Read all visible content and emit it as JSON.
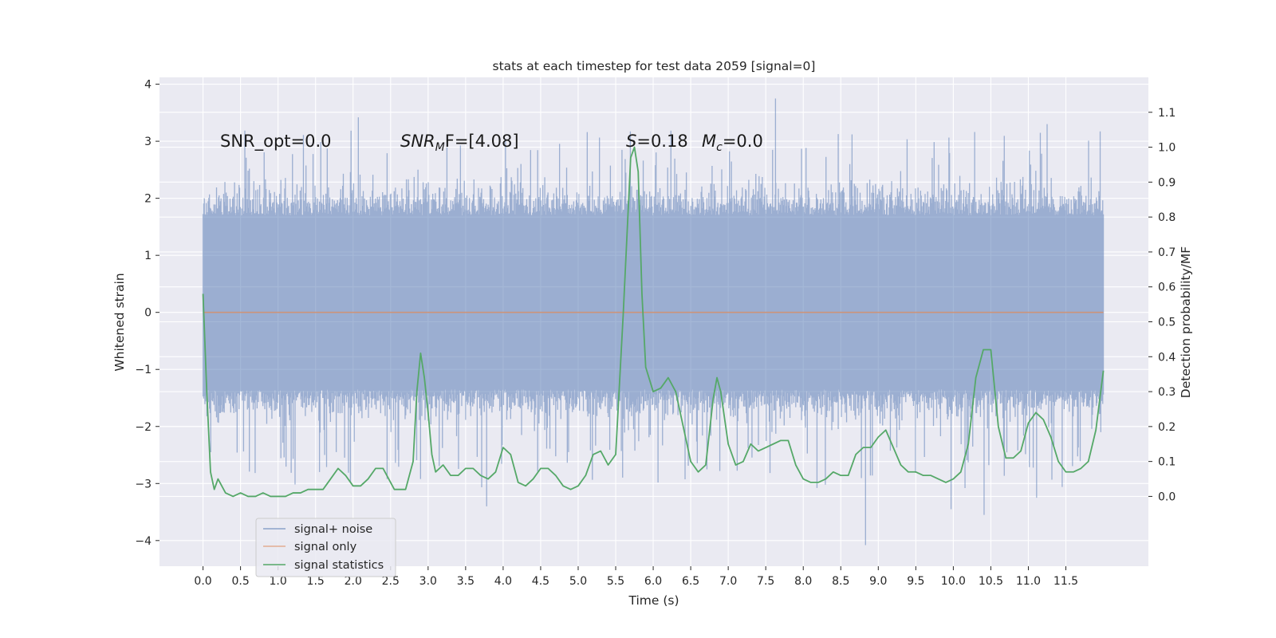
{
  "chart_data": {
    "type": "line",
    "title": "stats at each timestep for test data 2059 [signal=0]",
    "xlabel": "Time (s)",
    "ylabel": "Whitened strain",
    "ylabel_right": "Detection probability/MF",
    "xlim": [
      -0.58,
      12.6
    ],
    "ylim": [
      -4.45,
      4.12
    ],
    "ylim_right": [
      -0.2,
      1.2
    ],
    "x_ticks": [
      0.0,
      0.5,
      1.0,
      1.5,
      2.0,
      2.5,
      3.0,
      3.5,
      4.0,
      4.5,
      5.0,
      5.5,
      6.0,
      6.5,
      7.0,
      7.5,
      8.0,
      8.5,
      9.0,
      9.5,
      10.0,
      10.5,
      11.0,
      11.5
    ],
    "x_tick_labels": [
      "0.0",
      "0.5",
      "1.0",
      "1.5",
      "2.0",
      "2.5",
      "3.0",
      "3.5",
      "4.0",
      "4.5",
      "5.0",
      "5.5",
      "6.0",
      "6.5",
      "7.0",
      "7.5",
      "8.0",
      "8.5",
      "9.0",
      "9.5",
      "10.0",
      "10.5",
      "11.0",
      "11.5"
    ],
    "y_ticks": [
      -4,
      -3,
      -2,
      -1,
      0,
      1,
      2,
      3,
      4
    ],
    "y_tick_labels": [
      "−4",
      "−3",
      "−2",
      "−1",
      "0",
      "1",
      "2",
      "3",
      "4"
    ],
    "y_ticks_right": [
      0.0,
      0.1,
      0.2,
      0.3,
      0.4,
      0.5,
      0.6,
      0.7,
      0.8,
      0.9,
      1.0,
      1.1
    ],
    "y_tick_labels_right": [
      "0.0",
      "0.1",
      "0.2",
      "0.3",
      "0.4",
      "0.5",
      "0.6",
      "0.7",
      "0.8",
      "0.9",
      "1.0",
      "1.1"
    ],
    "grid": true,
    "legend_position": "lower-left",
    "annotations": [
      "SNR_opt=0.0",
      "SNR",
      "M",
      "F=[4.08]",
      "S",
      "=0.18",
      "M",
      "c",
      "=0.0"
    ],
    "noise": {
      "t_start": 0.0,
      "t_end": 12.0,
      "n_samples": 1400,
      "typical_range": [
        -1.4,
        1.7
      ],
      "max_excursion": 3.75,
      "min_excursion": -4.08
    },
    "series": [
      {
        "name": "signal+ noise",
        "color": "#4c72b0",
        "opacity": 0.5,
        "axis": "left",
        "description_kind": "dense noise band"
      },
      {
        "name": "signal only",
        "color": "#dd8452",
        "opacity": 0.5,
        "axis": "left",
        "x": [
          0.0,
          12.0
        ],
        "values": [
          0.0,
          0.0
        ]
      },
      {
        "name": "signal statistics",
        "color": "#55a868",
        "axis": "right",
        "x": [
          0.0,
          0.05,
          0.1,
          0.15,
          0.2,
          0.3,
          0.4,
          0.5,
          0.6,
          0.7,
          0.8,
          0.9,
          1.0,
          1.1,
          1.2,
          1.3,
          1.4,
          1.5,
          1.6,
          1.7,
          1.8,
          1.9,
          2.0,
          2.1,
          2.2,
          2.3,
          2.4,
          2.5,
          2.55,
          2.6,
          2.7,
          2.8,
          2.85,
          2.9,
          2.95,
          3.0,
          3.05,
          3.1,
          3.2,
          3.3,
          3.4,
          3.5,
          3.6,
          3.7,
          3.8,
          3.9,
          4.0,
          4.1,
          4.2,
          4.3,
          4.4,
          4.5,
          4.6,
          4.7,
          4.8,
          4.9,
          5.0,
          5.1,
          5.2,
          5.3,
          5.4,
          5.5,
          5.6,
          5.7,
          5.75,
          5.8,
          5.85,
          5.9,
          6.0,
          6.1,
          6.2,
          6.3,
          6.4,
          6.5,
          6.6,
          6.7,
          6.8,
          6.85,
          6.9,
          7.0,
          7.1,
          7.2,
          7.3,
          7.4,
          7.5,
          7.6,
          7.7,
          7.8,
          7.9,
          8.0,
          8.1,
          8.2,
          8.3,
          8.4,
          8.5,
          8.6,
          8.7,
          8.8,
          8.9,
          9.0,
          9.1,
          9.2,
          9.3,
          9.4,
          9.5,
          9.6,
          9.7,
          9.8,
          9.9,
          10.0,
          10.1,
          10.2,
          10.3,
          10.4,
          10.5,
          10.6,
          10.7,
          10.8,
          10.9,
          11.0,
          11.1,
          11.2,
          11.3,
          11.4,
          11.5,
          11.6,
          11.7,
          11.8,
          11.9,
          12.0
        ],
        "values": [
          0.58,
          0.3,
          0.07,
          0.02,
          0.05,
          0.01,
          0.0,
          0.01,
          0.0,
          0.0,
          0.01,
          0.0,
          0.0,
          0.0,
          0.01,
          0.01,
          0.02,
          0.02,
          0.02,
          0.05,
          0.08,
          0.06,
          0.03,
          0.03,
          0.05,
          0.08,
          0.08,
          0.04,
          0.02,
          0.02,
          0.02,
          0.1,
          0.3,
          0.41,
          0.34,
          0.24,
          0.12,
          0.07,
          0.09,
          0.06,
          0.06,
          0.08,
          0.08,
          0.06,
          0.05,
          0.07,
          0.14,
          0.12,
          0.04,
          0.03,
          0.05,
          0.08,
          0.08,
          0.06,
          0.03,
          0.02,
          0.03,
          0.06,
          0.12,
          0.13,
          0.09,
          0.12,
          0.52,
          0.97,
          1.0,
          0.93,
          0.58,
          0.37,
          0.3,
          0.31,
          0.34,
          0.3,
          0.2,
          0.1,
          0.07,
          0.09,
          0.28,
          0.34,
          0.3,
          0.15,
          0.09,
          0.1,
          0.15,
          0.13,
          0.14,
          0.15,
          0.16,
          0.16,
          0.09,
          0.05,
          0.04,
          0.04,
          0.05,
          0.07,
          0.06,
          0.06,
          0.12,
          0.14,
          0.14,
          0.17,
          0.19,
          0.14,
          0.09,
          0.07,
          0.07,
          0.06,
          0.06,
          0.05,
          0.04,
          0.05,
          0.07,
          0.15,
          0.34,
          0.42,
          0.42,
          0.2,
          0.11,
          0.11,
          0.13,
          0.21,
          0.24,
          0.22,
          0.17,
          0.1,
          0.07,
          0.07,
          0.08,
          0.1,
          0.19,
          0.36
        ]
      }
    ]
  },
  "legend": {
    "items": [
      {
        "label": "signal+ noise",
        "color": "#4c72b0"
      },
      {
        "label": "signal only",
        "color": "#dd8452"
      },
      {
        "label": "signal statistics",
        "color": "#55a868"
      }
    ]
  },
  "colors": {
    "plot_background": "#eaeaf2",
    "grid": "#ffffff",
    "noise": "#4c72b0",
    "signal_only": "#dd8452",
    "statistics": "#55a868"
  }
}
